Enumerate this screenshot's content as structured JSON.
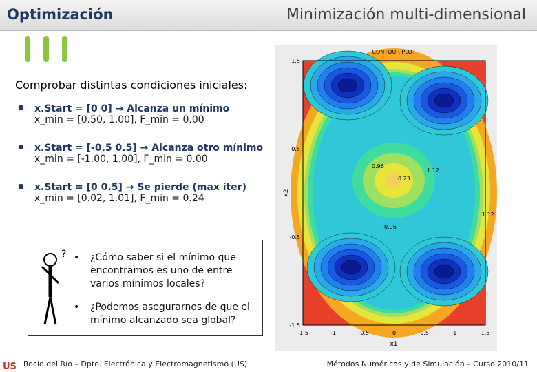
{
  "header": {
    "left_title": "Optimización",
    "right_title": "Minimización multi-dimensional"
  },
  "intro": "Comprobar distintas condiciones iniciales:",
  "bullets": [
    {
      "title": "x.Start = [0 0] → Alcanza un mínimo",
      "detail": "x_min = [0.50, 1.00], F_min =  0.00"
    },
    {
      "title": "x.Start = [-0.5 0.5] → Alcanza otro mínimo",
      "detail": "x_min = [-1.00, 1.00], F_min =  0.00"
    },
    {
      "title": "x.Start = [0 0.5] → Se pierde (max iter)",
      "detail": "x_min = [0.02, 1.01], F_min =  0.24"
    }
  ],
  "questions": [
    "¿Cómo saber si el mínimo que encontramos es uno de entre varios mínimos locales?",
    "¿Podemos asegurarnos de que el mínimo alcanzado sea global?"
  ],
  "plot": {
    "title": "CONTOUR PLOT",
    "xlabel": "x1",
    "ylabel": "x2",
    "xticks": [
      "-1.5",
      "-1",
      "-0.5",
      "0",
      "0.5",
      "1",
      "1.5"
    ],
    "yticks": [
      "1.5",
      "0.5",
      "-0.5",
      "-1.5"
    ],
    "contour_labels": [
      "0.96",
      "1.12",
      "0.23",
      "0.96",
      "1.12"
    ]
  },
  "footer": {
    "left": "Rocío del Río – Dpto. Electrónica y Electromagnetismo (US)",
    "right": "Métodos Numéricos y de Simulación – Curso 2010/11"
  }
}
